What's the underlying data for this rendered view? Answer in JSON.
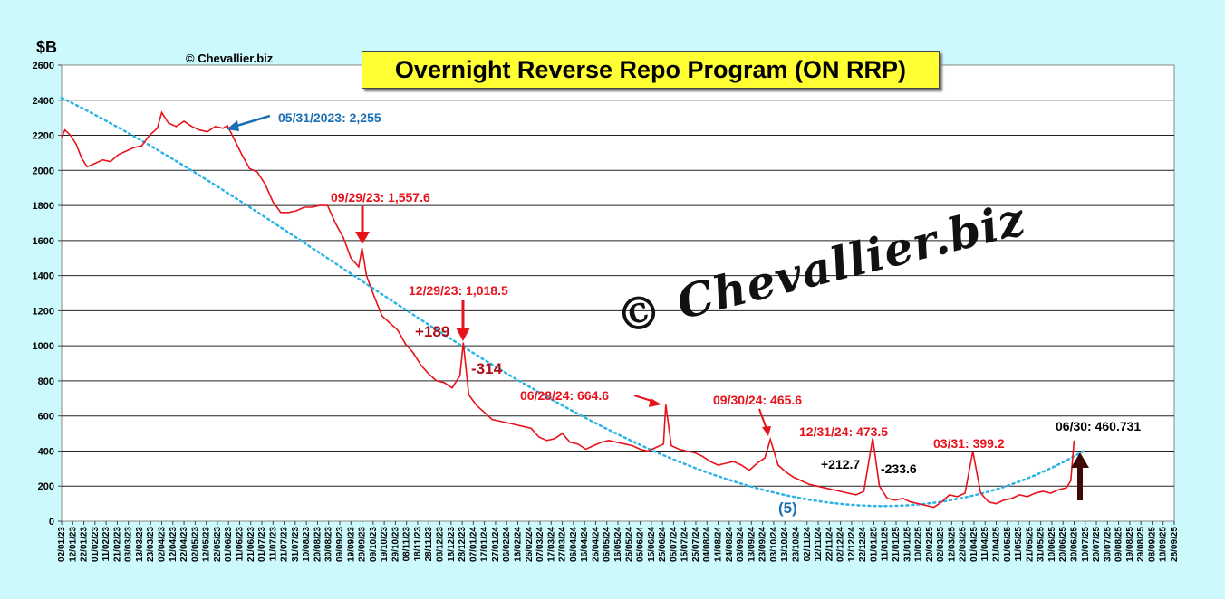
{
  "title": "Overnight Reverse Repo Program (ON RRP)",
  "unit_label": "$B",
  "credit": "© Chevallier.biz",
  "watermark": "© Chevallier.biz",
  "colors": {
    "background": "#ccf9fc",
    "series": "#e8121b",
    "trend": "#2bb3e6",
    "title_bg": "#ffff33"
  },
  "annotations": {
    "a1": "05/31/2023: 2,255",
    "a2": "09/29/23: 1,557.6",
    "a3": "12/29/23: 1,018.5",
    "a4": "+189",
    "a5": "-314",
    "a6": "06/28/24: 664.6",
    "a7": "09/30/24: 465.6",
    "a8": "12/31/24: 473.5",
    "a9": "+212.7",
    "a10": "-233.6",
    "a11": "03/31: 399.2",
    "a12": "06/30: 460.731",
    "a13": "(5)"
  },
  "chart_data": {
    "type": "line",
    "ylim": [
      0,
      2600
    ],
    "yticks": [
      0,
      200,
      400,
      600,
      800,
      1000,
      1200,
      1400,
      1600,
      1800,
      2000,
      2200,
      2400,
      2600
    ],
    "grid": true,
    "xlim": [
      "02/01/23",
      "28/09/25"
    ],
    "xtick_labels": [
      "02/01/23",
      "12/01/23",
      "22/01/23",
      "01/02/23",
      "11/02/23",
      "21/02/23",
      "03/03/23",
      "13/03/23",
      "23/03/23",
      "02/04/23",
      "12/04/23",
      "22/04/23",
      "02/05/23",
      "12/05/23",
      "22/05/23",
      "01/06/23",
      "11/06/23",
      "21/06/23",
      "01/07/23",
      "11/07/23",
      "21/07/23",
      "31/07/23",
      "10/08/23",
      "20/08/23",
      "30/08/23",
      "09/09/23",
      "19/09/23",
      "29/09/23",
      "09/10/23",
      "19/10/23",
      "29/10/23",
      "08/11/23",
      "18/11/23",
      "28/11/23",
      "08/12/23",
      "18/12/23",
      "28/12/23",
      "07/01/24",
      "17/01/24",
      "27/01/24",
      "06/02/24",
      "16/02/24",
      "26/02/24",
      "07/03/24",
      "17/03/24",
      "27/03/24",
      "06/04/24",
      "16/04/24",
      "26/04/24",
      "06/05/24",
      "16/05/24",
      "26/05/24",
      "05/06/24",
      "15/06/24",
      "25/06/24",
      "05/07/24",
      "15/07/24",
      "25/07/24",
      "04/08/24",
      "14/08/24",
      "24/08/24",
      "03/09/24",
      "13/09/24",
      "23/09/24",
      "03/10/24",
      "13/10/24",
      "23/10/24",
      "02/11/24",
      "12/11/24",
      "22/11/24",
      "02/12/24",
      "12/12/24",
      "22/12/24",
      "01/01/25",
      "11/01/25",
      "21/01/25",
      "31/01/25",
      "10/02/25",
      "20/02/25",
      "02/03/25",
      "12/03/25",
      "22/03/25",
      "01/04/25",
      "11/04/25",
      "21/04/25",
      "01/05/25",
      "11/05/25",
      "21/05/25",
      "31/05/25",
      "10/06/25",
      "20/06/25",
      "30/06/25",
      "10/07/25",
      "20/07/25",
      "30/07/25",
      "09/08/25",
      "19/08/25",
      "29/08/25",
      "08/09/25",
      "18/09/25",
      "28/09/25"
    ],
    "series": [
      {
        "values": [
          [
            "02/01/23",
            2190
          ],
          [
            "05/01/23",
            2230
          ],
          [
            "10/01/23",
            2200
          ],
          [
            "15/01/23",
            2150
          ],
          [
            "20/01/23",
            2070
          ],
          [
            "25/01/23",
            2020
          ],
          [
            "01/02/23",
            2040
          ],
          [
            "08/02/23",
            2060
          ],
          [
            "15/02/23",
            2050
          ],
          [
            "22/02/23",
            2090
          ],
          [
            "01/03/23",
            2110
          ],
          [
            "08/03/23",
            2130
          ],
          [
            "15/03/23",
            2140
          ],
          [
            "22/03/23",
            2200
          ],
          [
            "29/03/23",
            2240
          ],
          [
            "02/04/23",
            2330
          ],
          [
            "08/04/23",
            2270
          ],
          [
            "15/04/23",
            2250
          ],
          [
            "22/04/23",
            2280
          ],
          [
            "29/04/23",
            2250
          ],
          [
            "06/05/23",
            2230
          ],
          [
            "13/05/23",
            2220
          ],
          [
            "20/05/23",
            2250
          ],
          [
            "27/05/23",
            2240
          ],
          [
            "31/05/23",
            2255
          ],
          [
            "06/06/23",
            2180
          ],
          [
            "13/06/23",
            2090
          ],
          [
            "20/06/23",
            2010
          ],
          [
            "27/06/23",
            1990
          ],
          [
            "04/07/23",
            1920
          ],
          [
            "11/07/23",
            1820
          ],
          [
            "18/07/23",
            1760
          ],
          [
            "25/07/23",
            1760
          ],
          [
            "01/08/23",
            1770
          ],
          [
            "08/08/23",
            1790
          ],
          [
            "15/08/23",
            1790
          ],
          [
            "22/08/23",
            1800
          ],
          [
            "29/08/23",
            1800
          ],
          [
            "05/09/23",
            1700
          ],
          [
            "12/09/23",
            1620
          ],
          [
            "19/09/23",
            1500
          ],
          [
            "26/09/23",
            1450
          ],
          [
            "29/09/23",
            1557.6
          ],
          [
            "03/10/23",
            1400
          ],
          [
            "10/10/23",
            1280
          ],
          [
            "17/10/23",
            1170
          ],
          [
            "24/10/23",
            1130
          ],
          [
            "31/10/23",
            1090
          ],
          [
            "07/11/23",
            1010
          ],
          [
            "14/11/23",
            960
          ],
          [
            "21/11/23",
            890
          ],
          [
            "28/11/23",
            840
          ],
          [
            "05/12/23",
            800
          ],
          [
            "12/12/23",
            790
          ],
          [
            "19/12/23",
            760
          ],
          [
            "26/12/23",
            830
          ],
          [
            "29/12/23",
            1018.5
          ],
          [
            "03/01/24",
            720
          ],
          [
            "10/01/24",
            660
          ],
          [
            "17/01/24",
            620
          ],
          [
            "24/01/24",
            580
          ],
          [
            "31/01/24",
            570
          ],
          [
            "07/02/24",
            560
          ],
          [
            "14/02/24",
            550
          ],
          [
            "21/02/24",
            540
          ],
          [
            "28/02/24",
            530
          ],
          [
            "06/03/24",
            480
          ],
          [
            "13/03/24",
            460
          ],
          [
            "20/03/24",
            470
          ],
          [
            "27/03/24",
            500
          ],
          [
            "03/04/24",
            450
          ],
          [
            "10/04/24",
            440
          ],
          [
            "17/04/24",
            410
          ],
          [
            "24/04/24",
            430
          ],
          [
            "01/05/24",
            450
          ],
          [
            "08/05/24",
            460
          ],
          [
            "15/05/24",
            450
          ],
          [
            "22/05/24",
            440
          ],
          [
            "29/05/24",
            430
          ],
          [
            "05/06/24",
            410
          ],
          [
            "12/06/24",
            400
          ],
          [
            "19/06/24",
            420
          ],
          [
            "26/06/24",
            440
          ],
          [
            "28/06/24",
            664.6
          ],
          [
            "03/07/24",
            430
          ],
          [
            "10/07/24",
            410
          ],
          [
            "17/07/24",
            400
          ],
          [
            "24/07/24",
            390
          ],
          [
            "31/07/24",
            370
          ],
          [
            "07/08/24",
            340
          ],
          [
            "14/08/24",
            320
          ],
          [
            "21/08/24",
            330
          ],
          [
            "28/08/24",
            340
          ],
          [
            "04/09/24",
            320
          ],
          [
            "11/09/24",
            290
          ],
          [
            "18/09/24",
            330
          ],
          [
            "25/09/24",
            360
          ],
          [
            "30/09/24",
            465.6
          ],
          [
            "07/10/24",
            320
          ],
          [
            "14/10/24",
            280
          ],
          [
            "21/10/24",
            250
          ],
          [
            "28/10/24",
            230
          ],
          [
            "04/11/24",
            210
          ],
          [
            "11/11/24",
            200
          ],
          [
            "18/11/24",
            190
          ],
          [
            "25/11/24",
            180
          ],
          [
            "02/12/24",
            170
          ],
          [
            "09/12/24",
            160
          ],
          [
            "16/12/24",
            150
          ],
          [
            "23/12/24",
            170
          ],
          [
            "31/12/24",
            473.5
          ],
          [
            "06/01/25",
            200
          ],
          [
            "13/01/25",
            130
          ],
          [
            "20/01/25",
            120
          ],
          [
            "27/01/25",
            130
          ],
          [
            "03/02/25",
            110
          ],
          [
            "10/02/25",
            100
          ],
          [
            "17/02/25",
            90
          ],
          [
            "24/02/25",
            80
          ],
          [
            "03/03/25",
            110
          ],
          [
            "10/03/25",
            150
          ],
          [
            "17/03/25",
            140
          ],
          [
            "24/03/25",
            160
          ],
          [
            "31/03/25",
            399.2
          ],
          [
            "07/04/25",
            160
          ],
          [
            "14/04/25",
            110
          ],
          [
            "21/04/25",
            100
          ],
          [
            "28/04/25",
            120
          ],
          [
            "05/05/25",
            130
          ],
          [
            "12/05/25",
            150
          ],
          [
            "19/05/25",
            140
          ],
          [
            "26/05/25",
            160
          ],
          [
            "02/06/25",
            170
          ],
          [
            "09/06/25",
            160
          ],
          [
            "16/06/25",
            180
          ],
          [
            "23/06/25",
            190
          ],
          [
            "27/06/25",
            230
          ],
          [
            "30/06/25",
            460.731
          ]
        ]
      }
    ]
  }
}
